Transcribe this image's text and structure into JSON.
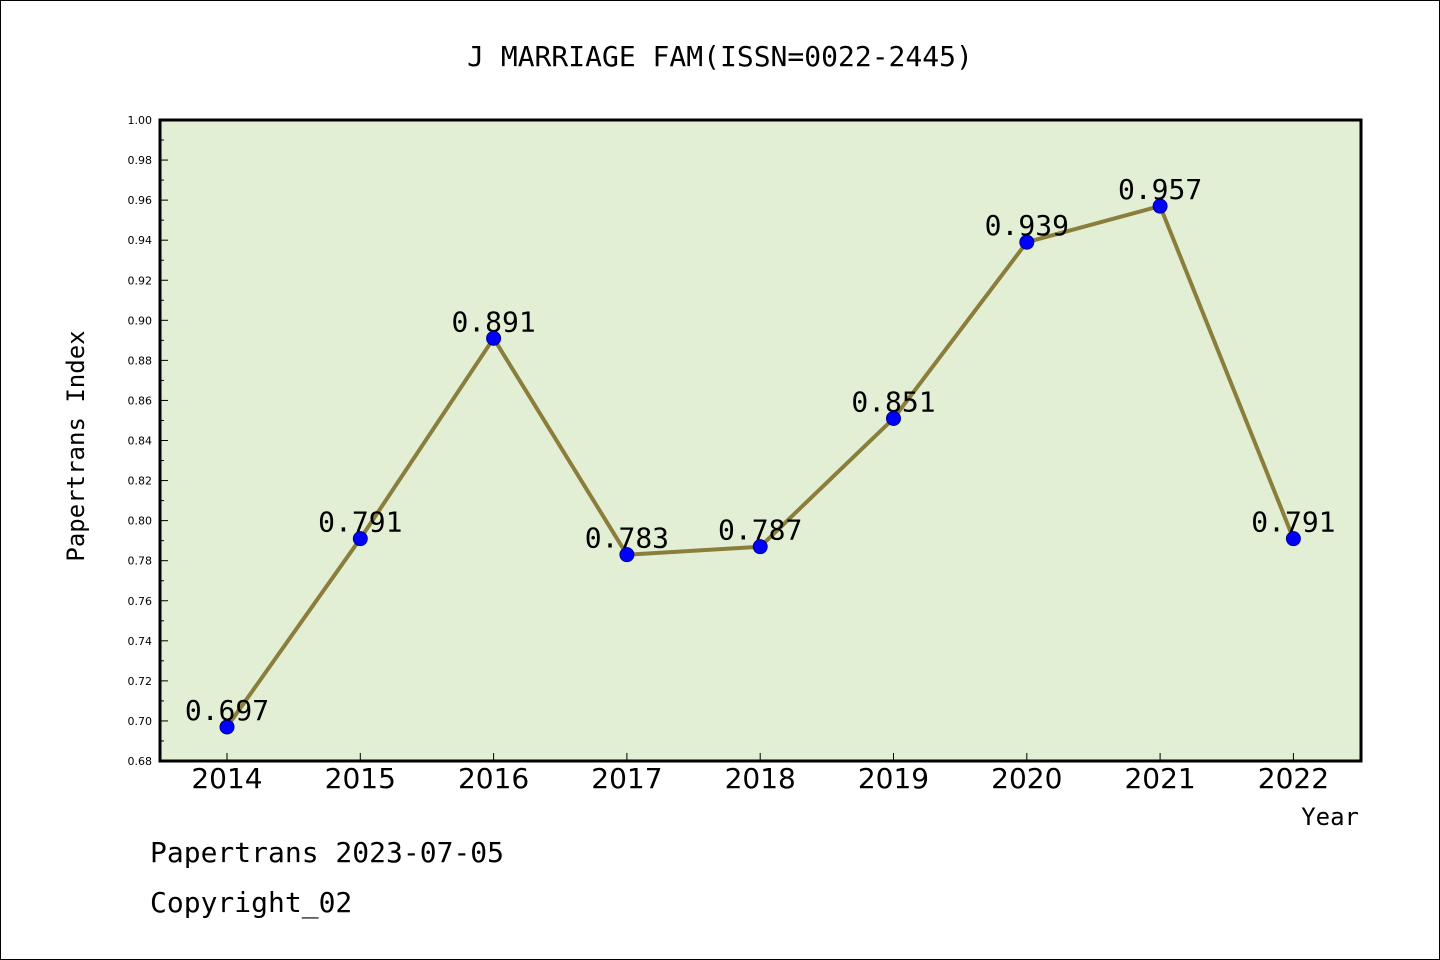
{
  "chart_data": {
    "type": "line",
    "title": "J MARRIAGE FAM(ISSN=0022-2445)",
    "xlabel": "Year",
    "ylabel": "Papertrans Index",
    "categories": [
      "2014",
      "2015",
      "2016",
      "2017",
      "2018",
      "2019",
      "2020",
      "2021",
      "2022"
    ],
    "values": [
      0.697,
      0.791,
      0.891,
      0.783,
      0.787,
      0.851,
      0.939,
      0.957,
      0.791
    ],
    "value_labels": [
      "0.697",
      "0.791",
      "0.891",
      "0.783",
      "0.787",
      "0.851",
      "0.939",
      "0.957",
      "0.791"
    ],
    "ylim": [
      0.68,
      1.0
    ],
    "yticks": [
      "0.68",
      "0.70",
      "0.72",
      "0.74",
      "0.76",
      "0.78",
      "0.80",
      "0.82",
      "0.84",
      "0.86",
      "0.88",
      "0.90",
      "0.92",
      "0.94",
      "0.96",
      "0.98",
      "1.00"
    ],
    "grid": false,
    "legend": "none",
    "colors": {
      "plot_background": "#e2efd5",
      "line": "#8b7d3a",
      "marker": "#0000ff"
    }
  },
  "footer": {
    "line1": "Papertrans 2023-07-05",
    "line2": "Copyright_02"
  }
}
